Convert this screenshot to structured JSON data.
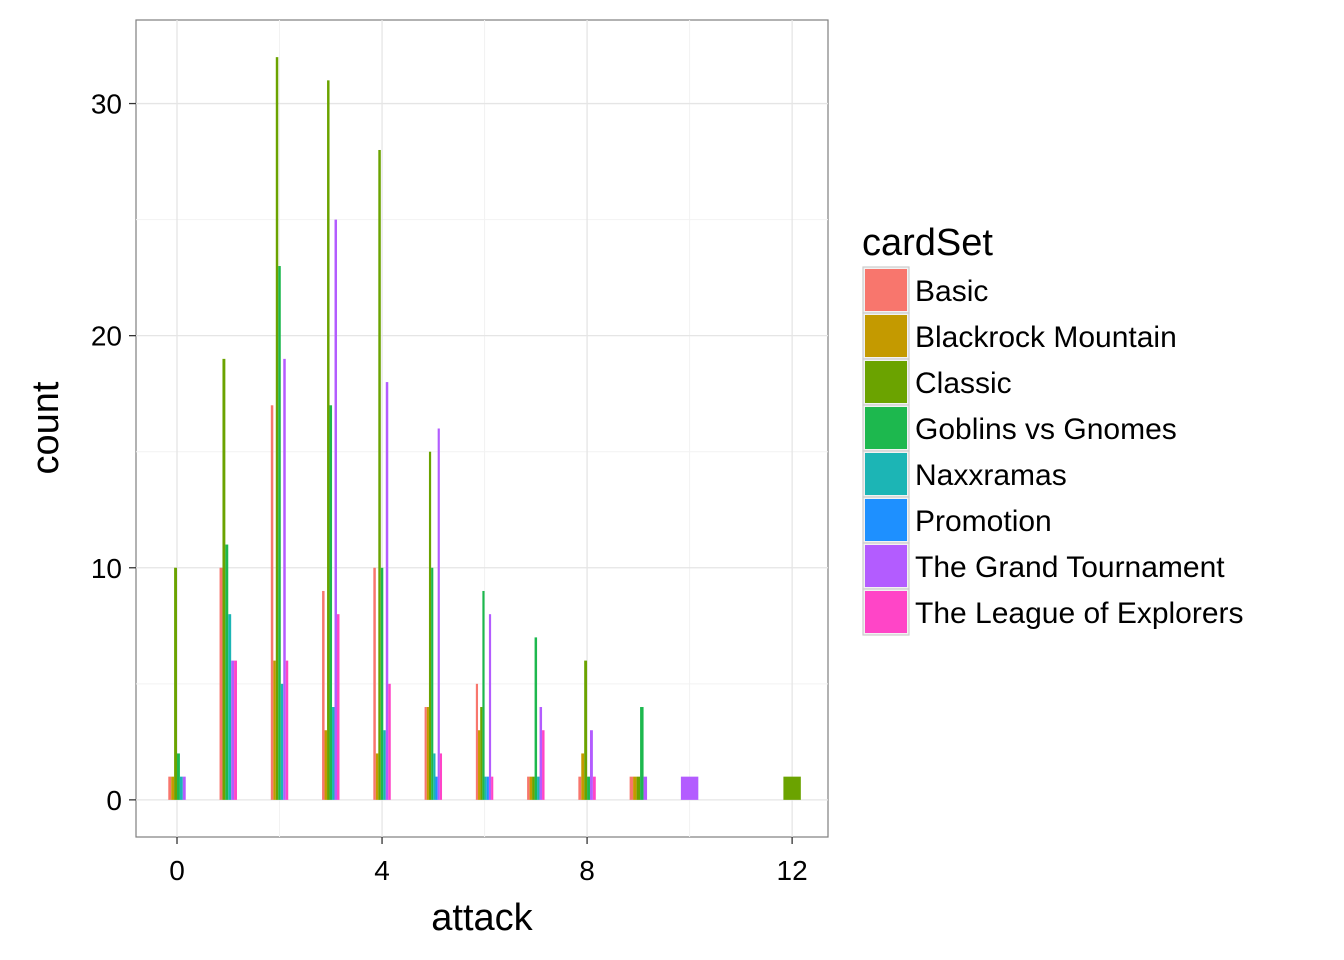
{
  "chart_data": {
    "type": "bar",
    "subtype": "dodged-histogram",
    "xlabel": "attack",
    "ylabel": "count",
    "xlim": [
      -0.8,
      12.7
    ],
    "ylim": [
      -1.6,
      33.6
    ],
    "x_ticks": [
      0,
      4,
      8,
      12
    ],
    "y_ticks": [
      0,
      10,
      20,
      30
    ],
    "grid": true,
    "legend_position": "right",
    "legend_title": "cardSet",
    "series": [
      {
        "name": "Basic",
        "color": "#F8766D",
        "points": [
          [
            0,
            1
          ],
          [
            1,
            10
          ],
          [
            2,
            17
          ],
          [
            3,
            9
          ],
          [
            4,
            10
          ],
          [
            5,
            4
          ],
          [
            6,
            5
          ],
          [
            7,
            1
          ],
          [
            8,
            1
          ],
          [
            9,
            1
          ]
        ]
      },
      {
        "name": "Blackrock Mountain",
        "color": "#C49A00",
        "points": [
          [
            0,
            1
          ],
          [
            2,
            6
          ],
          [
            3,
            3
          ],
          [
            4,
            2
          ],
          [
            5,
            4
          ],
          [
            6,
            3
          ],
          [
            7,
            1
          ],
          [
            8,
            2
          ],
          [
            9,
            1
          ]
        ]
      },
      {
        "name": "Classic",
        "color": "#53B400",
        "points": [
          [
            0,
            10
          ],
          [
            1,
            19
          ],
          [
            2,
            32
          ],
          [
            3,
            31
          ],
          [
            4,
            28
          ],
          [
            5,
            15
          ],
          [
            6,
            4
          ],
          [
            7,
            1
          ],
          [
            8,
            6
          ],
          [
            9,
            1
          ],
          [
            12,
            1
          ]
        ]
      },
      {
        "name": "Goblins vs Gnomes",
        "color": "#00C094",
        "points": [
          [
            0,
            2
          ],
          [
            1,
            11
          ],
          [
            2,
            23
          ],
          [
            3,
            17
          ],
          [
            4,
            10
          ],
          [
            5,
            10
          ],
          [
            6,
            9
          ],
          [
            7,
            7
          ],
          [
            8,
            1
          ],
          [
            9,
            4
          ]
        ]
      },
      {
        "name": "Naxxramas",
        "color": "#00B6EB",
        "points": [
          [
            0,
            1
          ],
          [
            1,
            8
          ],
          [
            2,
            5
          ],
          [
            3,
            4
          ],
          [
            4,
            3
          ],
          [
            5,
            2
          ],
          [
            6,
            1
          ],
          [
            7,
            1
          ]
        ]
      },
      {
        "name": "Promotion",
        "color": "#06A4FF",
        "points": [
          [
            5,
            1
          ],
          [
            6,
            1
          ]
        ]
      },
      {
        "name": "The Grand Tournament",
        "color": "#A58AFF",
        "points": [
          [
            0,
            1
          ],
          [
            1,
            6
          ],
          [
            2,
            19
          ],
          [
            3,
            25
          ],
          [
            4,
            18
          ],
          [
            5,
            16
          ],
          [
            6,
            8
          ],
          [
            7,
            4
          ],
          [
            8,
            3
          ],
          [
            9,
            1
          ],
          [
            10,
            1
          ]
        ]
      },
      {
        "name": "The League of Explorers",
        "color": "#FB61D7",
        "points": [
          [
            1,
            6
          ],
          [
            2,
            6
          ],
          [
            3,
            8
          ],
          [
            4,
            5
          ],
          [
            5,
            2
          ],
          [
            6,
            1
          ],
          [
            7,
            3
          ],
          [
            8,
            1
          ]
        ]
      }
    ],
    "legend_colors_display": [
      "#F8766D",
      "#C49A00",
      "#6BA300",
      "#1DB84E",
      "#1CB5B5",
      "#1E90FF",
      "#B35CFF",
      "#FF45C7"
    ]
  }
}
